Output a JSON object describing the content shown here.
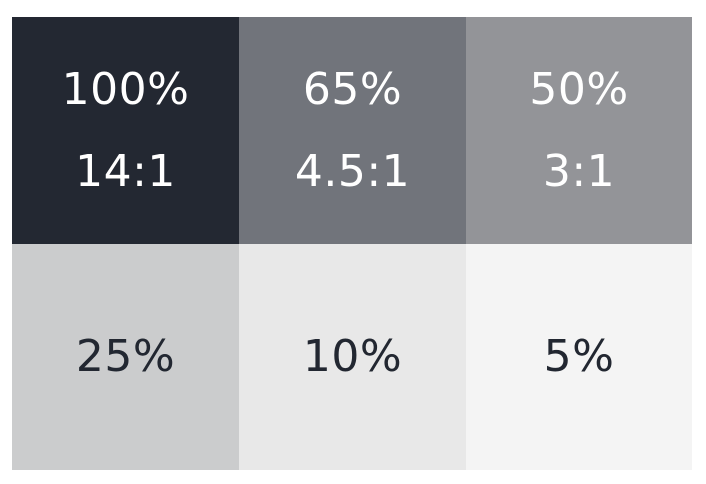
{
  "swatches": [
    {
      "percent": "100%",
      "ratio": "14:1",
      "background": "#232832",
      "text_color": "#ffffff"
    },
    {
      "percent": "65%",
      "ratio": "4.5:1",
      "background": "#71747b",
      "text_color": "#ffffff"
    },
    {
      "percent": "50%",
      "ratio": "3:1",
      "background": "#939498",
      "text_color": "#ffffff"
    },
    {
      "percent": "25%",
      "background": "#cbcccd",
      "text_color": "#222731"
    },
    {
      "percent": "10%",
      "background": "#e8e8e8",
      "text_color": "#222731"
    },
    {
      "percent": "5%",
      "background": "#f4f4f4",
      "text_color": "#222731"
    }
  ]
}
